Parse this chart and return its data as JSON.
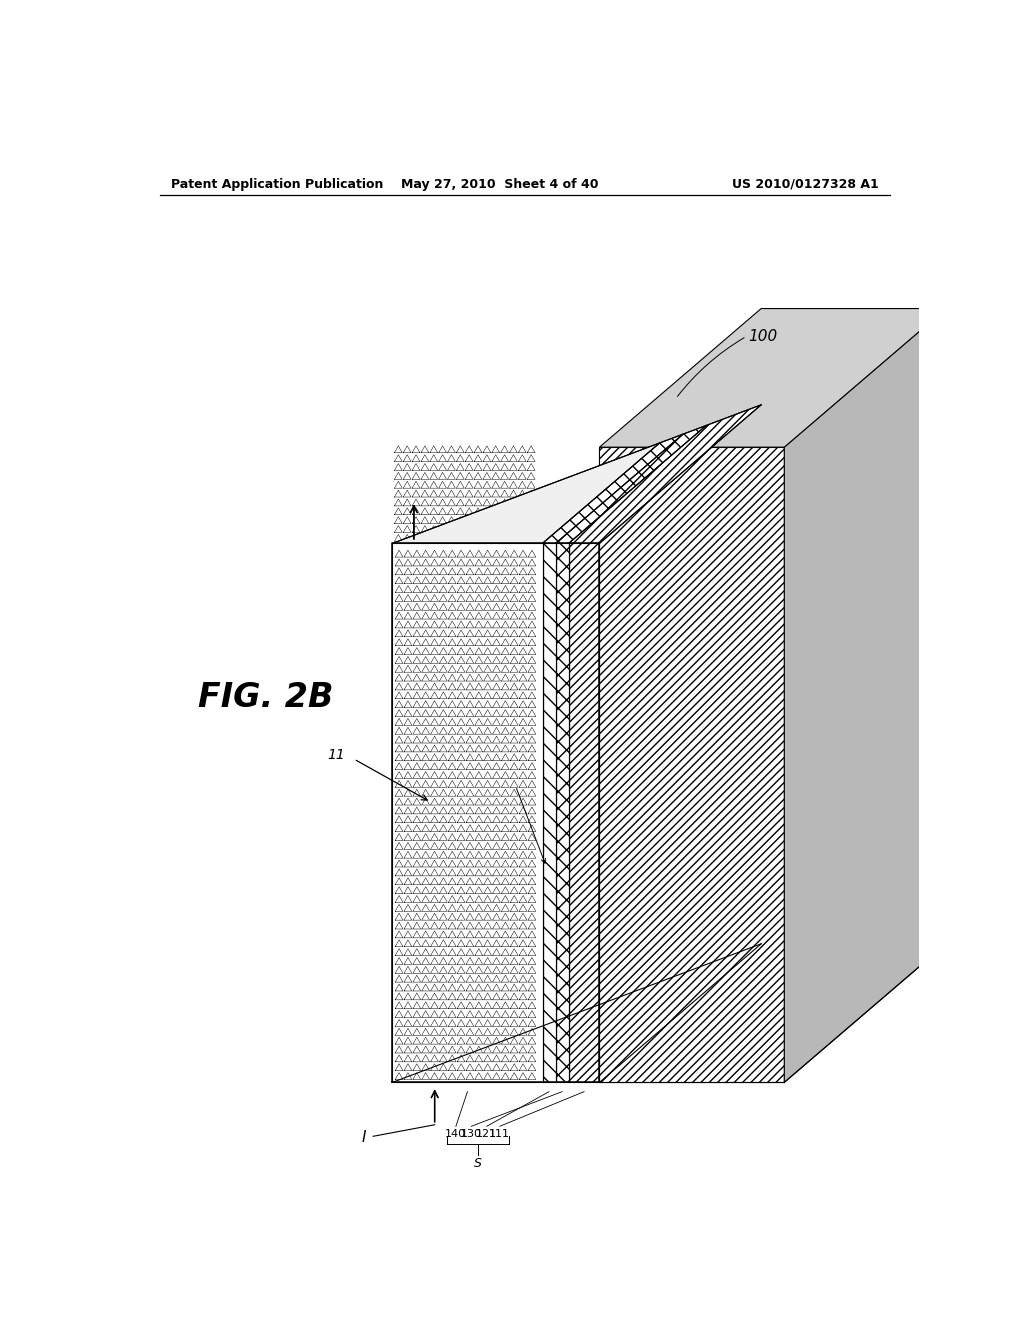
{
  "header_left": "Patent Application Publication",
  "header_mid": "May 27, 2010  Sheet 4 of 40",
  "header_right": "US 2010/0127328 A1",
  "fig_label": "FIG. 2B",
  "label_100": "100",
  "label_11": "11",
  "label_111": "111",
  "label_121": "121",
  "label_130": "130",
  "label_140": "140",
  "label_S": "S",
  "bg_color": "#ffffff",
  "line_color": "#000000"
}
